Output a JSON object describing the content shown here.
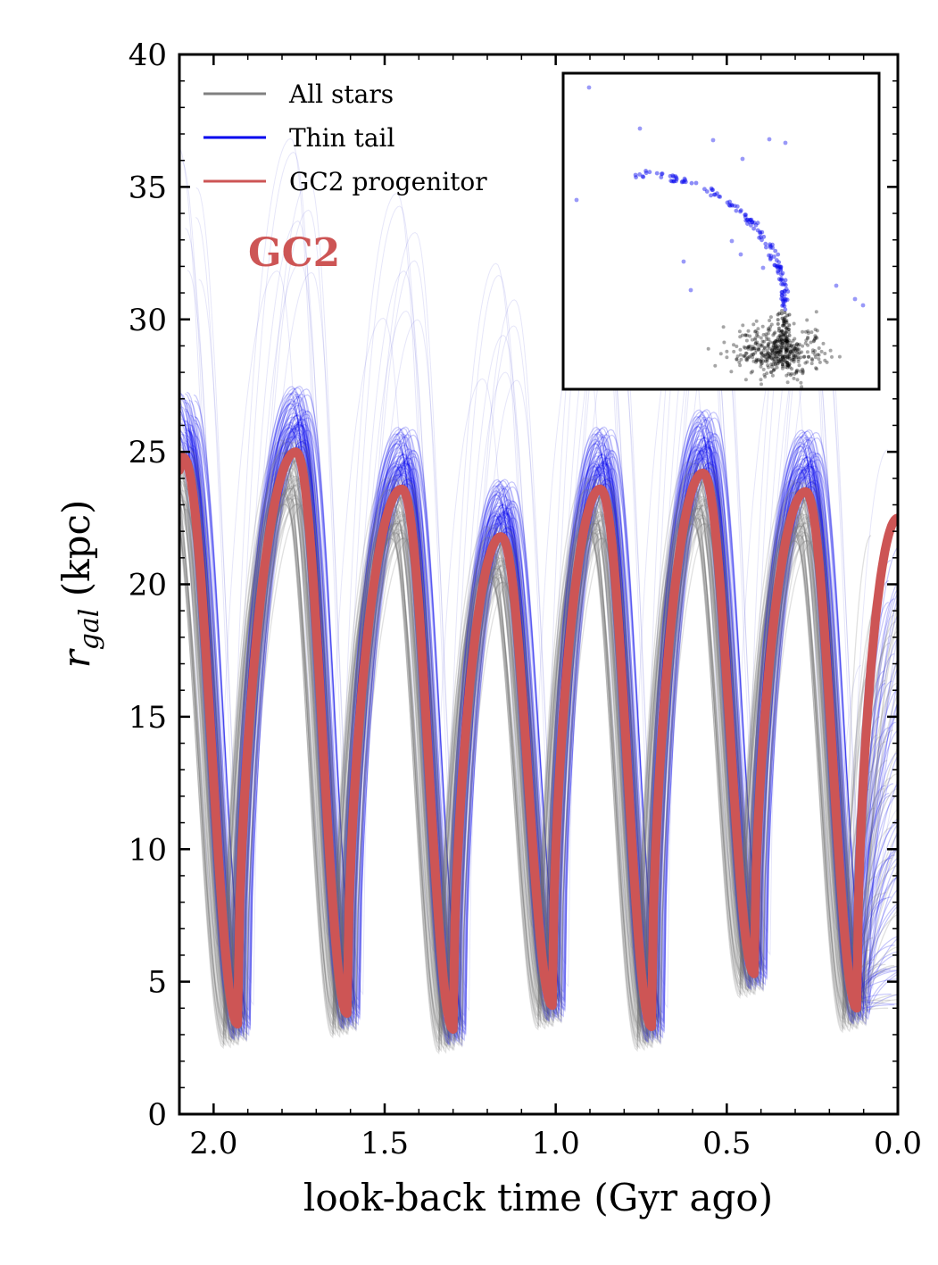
{
  "chart_data": {
    "type": "line",
    "title": "",
    "xlabel": "look-back time (Gyr ago)",
    "ylabel_main": "r",
    "ylabel_sub": "gal",
    "ylabel_unit": " (kpc)",
    "xlim": [
      2.1,
      0.0
    ],
    "ylim": [
      0,
      40
    ],
    "x_ticks": [
      "2.0",
      "1.5",
      "1.0",
      "0.5",
      "0.0"
    ],
    "x_tick_values": [
      2.0,
      1.5,
      1.0,
      0.5,
      0.0
    ],
    "y_ticks": [
      "0",
      "5",
      "10",
      "15",
      "20",
      "25",
      "30",
      "35",
      "40"
    ],
    "y_tick_values": [
      0,
      5,
      10,
      15,
      20,
      25,
      30,
      35,
      40
    ],
    "annotation": "GC2",
    "legend": [
      {
        "label": "All stars",
        "color": "#808080"
      },
      {
        "label": "Thin tail",
        "color": "#0000ee"
      },
      {
        "label": "GC2 progenitor",
        "color": "#cd5555"
      }
    ],
    "series": [
      {
        "name": "GC2 progenitor",
        "color": "#cd5555",
        "apocenters": [
          [
            2.09,
            24.8
          ],
          [
            1.76,
            25.0
          ],
          [
            1.45,
            23.6
          ],
          [
            1.16,
            21.8
          ],
          [
            0.87,
            23.6
          ],
          [
            0.57,
            24.2
          ],
          [
            0.27,
            23.5
          ]
        ],
        "pericenters": [
          [
            1.93,
            3.4
          ],
          [
            1.61,
            3.8
          ],
          [
            1.3,
            3.2
          ],
          [
            1.01,
            4.1
          ],
          [
            0.72,
            3.3
          ],
          [
            0.42,
            5.3
          ],
          [
            0.12,
            4.0
          ]
        ],
        "end": [
          0.0,
          22.5
        ]
      },
      {
        "name": "Thin tail",
        "color": "#0000ee",
        "apocenters_approx": [
          [
            1.76,
            26.5
          ],
          [
            1.45,
            25.0
          ],
          [
            1.16,
            23.0
          ],
          [
            0.87,
            25.5
          ],
          [
            0.57,
            26.0
          ],
          [
            0.27,
            26.0
          ]
        ],
        "pericenters_approx": [
          [
            1.93,
            2.5
          ],
          [
            1.61,
            3.5
          ],
          [
            1.3,
            3.0
          ],
          [
            1.01,
            3.5
          ],
          [
            0.72,
            3.5
          ],
          [
            0.42,
            4.0
          ],
          [
            0.12,
            3.5
          ]
        ]
      },
      {
        "name": "All stars",
        "color": "#808080",
        "apocenters_approx": [
          [
            1.76,
            25.0
          ],
          [
            1.45,
            23.5
          ],
          [
            1.16,
            22.0
          ],
          [
            0.87,
            23.0
          ],
          [
            0.57,
            23.0
          ],
          [
            0.27,
            23.0
          ]
        ],
        "pericenters_approx": [
          [
            1.93,
            2.5
          ],
          [
            1.61,
            3.0
          ],
          [
            1.3,
            2.5
          ],
          [
            1.01,
            3.0
          ],
          [
            0.72,
            3.0
          ],
          [
            0.42,
            3.5
          ],
          [
            0.12,
            3.0
          ]
        ]
      }
    ],
    "inset": {
      "type": "scatter",
      "description_series": [
        {
          "name": "Thin tail",
          "color": "#0000ee"
        },
        {
          "name": "All stars",
          "color": "#000000"
        }
      ]
    }
  }
}
